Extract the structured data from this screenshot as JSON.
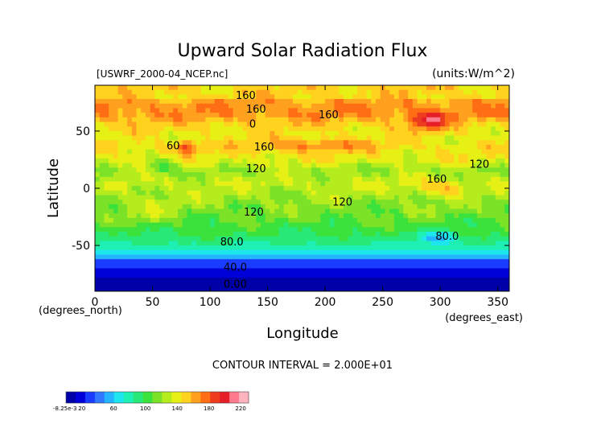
{
  "chart_data": {
    "type": "heatmap",
    "title": "Upward Solar Radiation Flux",
    "subtitle_left": "[USWRF_2000-04_NCEP.nc]",
    "subtitle_right": "(units:W/m^2)",
    "xlabel": "Longitude",
    "ylabel": "Latitude",
    "x_unit_label": "(degrees_east)",
    "y_unit_label": "(degrees_north)",
    "xlim": [
      0,
      360
    ],
    "ylim": [
      -90,
      90
    ],
    "x_ticks": [
      0,
      50,
      100,
      150,
      200,
      250,
      300,
      350
    ],
    "y_ticks": [
      -50,
      0,
      50
    ],
    "contour_interval_text": "CONTOUR INTERVAL = 2.000E+01",
    "contour_labels": [
      {
        "text": "160",
        "lon": 131,
        "lat": 78
      },
      {
        "text": "160",
        "lon": 140,
        "lat": 66
      },
      {
        "text": "160",
        "lon": 203,
        "lat": 61
      },
      {
        "text": "0",
        "lon": 137,
        "lat": 53
      },
      {
        "text": "60",
        "lon": 68,
        "lat": 34
      },
      {
        "text": "160",
        "lon": 147,
        "lat": 33
      },
      {
        "text": "120",
        "lon": 140,
        "lat": 14
      },
      {
        "text": "160",
        "lon": 297,
        "lat": 5
      },
      {
        "text": "120",
        "lon": 334,
        "lat": 18
      },
      {
        "text": "120",
        "lon": 138,
        "lat": -24
      },
      {
        "text": "120",
        "lon": 215,
        "lat": -15
      },
      {
        "text": "80.0",
        "lon": 119,
        "lat": -50
      },
      {
        "text": "80.0",
        "lon": 306,
        "lat": -45
      },
      {
        "text": "40.0",
        "lon": 122,
        "lat": -72
      },
      {
        "text": "0.00",
        "lon": 122,
        "lat": -87
      }
    ],
    "colorbar": {
      "min_label": "-8.25e-3",
      "tick_labels": [
        "20",
        "60",
        "100",
        "140",
        "180",
        "220"
      ],
      "colors": [
        "#0000a8",
        "#0000d8",
        "#1a3cff",
        "#2f78ff",
        "#25b4ff",
        "#1ee6ef",
        "#1ef0b4",
        "#28e878",
        "#3ce23c",
        "#7ce228",
        "#b4ec1e",
        "#e6f014",
        "#ffd21e",
        "#ffa01e",
        "#ff6e14",
        "#ee3c1e",
        "#e61e28",
        "#ff7a8c",
        "#ffb4c0"
      ]
    },
    "zonal_profile": [
      {
        "lat": 90,
        "value": 150
      },
      {
        "lat": 80,
        "value": 150
      },
      {
        "lat": 75,
        "value": 165
      },
      {
        "lat": 65,
        "value": 168
      },
      {
        "lat": 55,
        "value": 150
      },
      {
        "lat": 45,
        "value": 140
      },
      {
        "lat": 35,
        "value": 145
      },
      {
        "lat": 25,
        "value": 140
      },
      {
        "lat": 15,
        "value": 122
      },
      {
        "lat": 5,
        "value": 132
      },
      {
        "lat": -5,
        "value": 125
      },
      {
        "lat": -15,
        "value": 118
      },
      {
        "lat": -25,
        "value": 112
      },
      {
        "lat": -35,
        "value": 102
      },
      {
        "lat": -45,
        "value": 92
      },
      {
        "lat": -52,
        "value": 76
      },
      {
        "lat": -56,
        "value": 66
      },
      {
        "lat": -60,
        "value": 52
      },
      {
        "lat": -64,
        "value": 36
      },
      {
        "lat": -72,
        "value": 18
      },
      {
        "lat": -80,
        "value": 8
      },
      {
        "lat": -86,
        "value": 2
      },
      {
        "lat": -90,
        "value": 0
      }
    ]
  }
}
